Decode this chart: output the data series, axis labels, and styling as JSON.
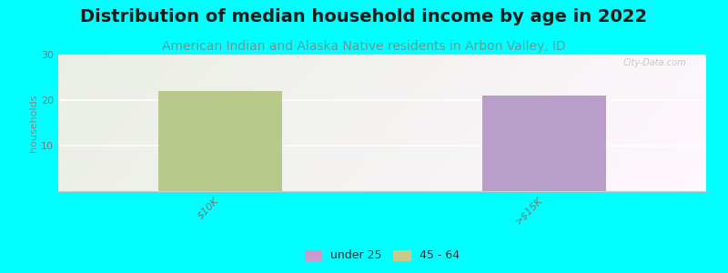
{
  "title": "Distribution of median household income by age in 2022",
  "subtitle": "American Indian and Alaska Native residents in Arbon Valley, ID",
  "ylabel": "households",
  "background_color": "#00FFFF",
  "categories": [
    "$10K",
    ">$15K"
  ],
  "bar_45_64_value": 22,
  "bar_under25_value": 21,
  "bar_45_64_color": "#b8c98a",
  "bar_under25_color": "#b89ec8",
  "bar_width": 0.38,
  "ylim": [
    0,
    30
  ],
  "yticks": [
    0,
    10,
    20,
    30
  ],
  "watermark": "City-Data.com",
  "legend_labels": [
    "under 25",
    "45 - 64"
  ],
  "legend_colors": [
    "#cc99cc",
    "#c8cc88"
  ],
  "title_fontsize": 14,
  "subtitle_fontsize": 10,
  "ylabel_fontsize": 8,
  "tick_label_fontsize": 8,
  "title_color": "#1a1a1a",
  "subtitle_color": "#669999",
  "ylabel_color": "#888888",
  "tick_color": "#777777",
  "grid_color": "#e0e0e0",
  "bg_gradient_left": "#c8e8c0",
  "bg_gradient_right": "#f0f8e8"
}
